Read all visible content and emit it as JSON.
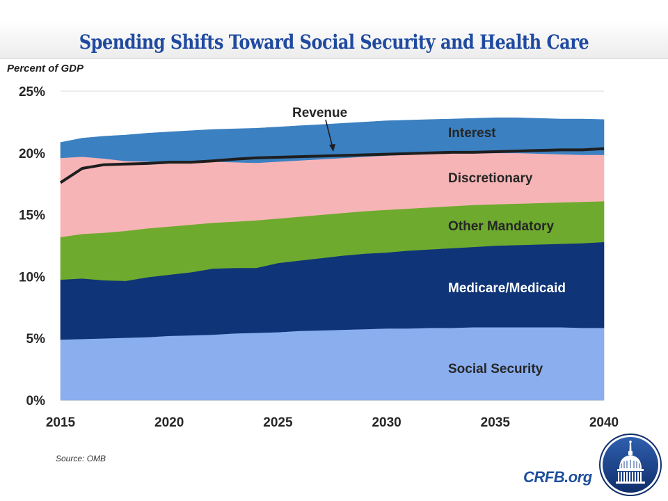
{
  "header": {
    "title": "Spending Shifts Toward Social Security and Health Care"
  },
  "footer": {
    "source": "Source: OMB",
    "brand": "CRFB.org",
    "logo_icon": "capitol-dome-logo-icon"
  },
  "colors": {
    "title": "#1f4aa0",
    "social_security": "#8aaeee",
    "medicare_medicaid": "#0f3477",
    "other_mandatory": "#6eaa2e",
    "discretionary": "#f7b4b6",
    "interest": "#3b80c1",
    "revenue": "#1e1e1e",
    "brand": "#1e4f9c"
  },
  "chart_data": {
    "type": "area",
    "stacked": true,
    "title": "Spending Shifts Toward Social Security and Health Care",
    "ylabel": "Percent of GDP",
    "xlabel": "",
    "ylim": [
      0,
      25
    ],
    "xlim": [
      2015,
      2040
    ],
    "y_ticks": [
      "0%",
      "5%",
      "10%",
      "15%",
      "20%",
      "25%"
    ],
    "y_tick_values": [
      0,
      5,
      10,
      15,
      20,
      25
    ],
    "x_ticks": [
      "2015",
      "2020",
      "2025",
      "2030",
      "2035",
      "2040"
    ],
    "x_tick_values": [
      2015,
      2020,
      2025,
      2030,
      2035,
      2040
    ],
    "grid": "horizontal at 25% only",
    "legend": "inline labels on right",
    "x": [
      2015,
      2016,
      2017,
      2018,
      2019,
      2020,
      2021,
      2022,
      2023,
      2024,
      2025,
      2026,
      2027,
      2028,
      2029,
      2030,
      2031,
      2032,
      2033,
      2034,
      2035,
      2036,
      2037,
      2038,
      2039,
      2040
    ],
    "series": [
      {
        "name": "Social Security",
        "label": "Social Security",
        "values": [
          4.9,
          4.95,
          5.0,
          5.05,
          5.1,
          5.2,
          5.25,
          5.3,
          5.4,
          5.45,
          5.5,
          5.6,
          5.65,
          5.7,
          5.75,
          5.8,
          5.8,
          5.85,
          5.85,
          5.9,
          5.9,
          5.9,
          5.9,
          5.9,
          5.85,
          5.85
        ]
      },
      {
        "name": "Medicare/Medicaid",
        "label": "Medicare/Medicaid",
        "values": [
          4.85,
          4.9,
          4.7,
          4.6,
          4.85,
          4.95,
          5.1,
          5.35,
          5.3,
          5.25,
          5.6,
          5.7,
          5.85,
          6.0,
          6.1,
          6.15,
          6.3,
          6.35,
          6.45,
          6.5,
          6.6,
          6.65,
          6.7,
          6.75,
          6.85,
          6.95
        ]
      },
      {
        "name": "Other Mandatory",
        "label": "Other Mandatory",
        "values": [
          3.45,
          3.6,
          3.85,
          4.05,
          3.95,
          3.9,
          3.85,
          3.7,
          3.75,
          3.85,
          3.6,
          3.55,
          3.5,
          3.45,
          3.45,
          3.45,
          3.4,
          3.4,
          3.4,
          3.4,
          3.35,
          3.35,
          3.35,
          3.35,
          3.35,
          3.3
        ]
      },
      {
        "name": "Discretionary",
        "label": "Discretionary",
        "values": [
          6.4,
          6.25,
          6.0,
          5.65,
          5.4,
          5.25,
          5.1,
          4.95,
          4.8,
          4.65,
          4.6,
          4.55,
          4.5,
          4.45,
          4.4,
          4.4,
          4.4,
          4.35,
          4.3,
          4.2,
          4.15,
          4.1,
          4.0,
          3.9,
          3.8,
          3.75
        ]
      },
      {
        "name": "Interest",
        "label": "Interest",
        "values": [
          1.25,
          1.5,
          1.8,
          2.1,
          2.3,
          2.4,
          2.5,
          2.6,
          2.7,
          2.8,
          2.8,
          2.8,
          2.8,
          2.8,
          2.8,
          2.8,
          2.75,
          2.75,
          2.75,
          2.8,
          2.85,
          2.85,
          2.85,
          2.85,
          2.9,
          2.85
        ]
      }
    ],
    "line": {
      "name": "Revenue",
      "label": "Revenue",
      "annotation": "Revenue (arrow pointing to line near 2028)",
      "values": [
        17.6,
        18.75,
        19.05,
        19.1,
        19.15,
        19.25,
        19.25,
        19.35,
        19.5,
        19.6,
        19.65,
        19.7,
        19.75,
        19.8,
        19.85,
        19.9,
        19.95,
        20.0,
        20.05,
        20.05,
        20.1,
        20.15,
        20.2,
        20.25,
        20.25,
        20.35
      ]
    }
  }
}
